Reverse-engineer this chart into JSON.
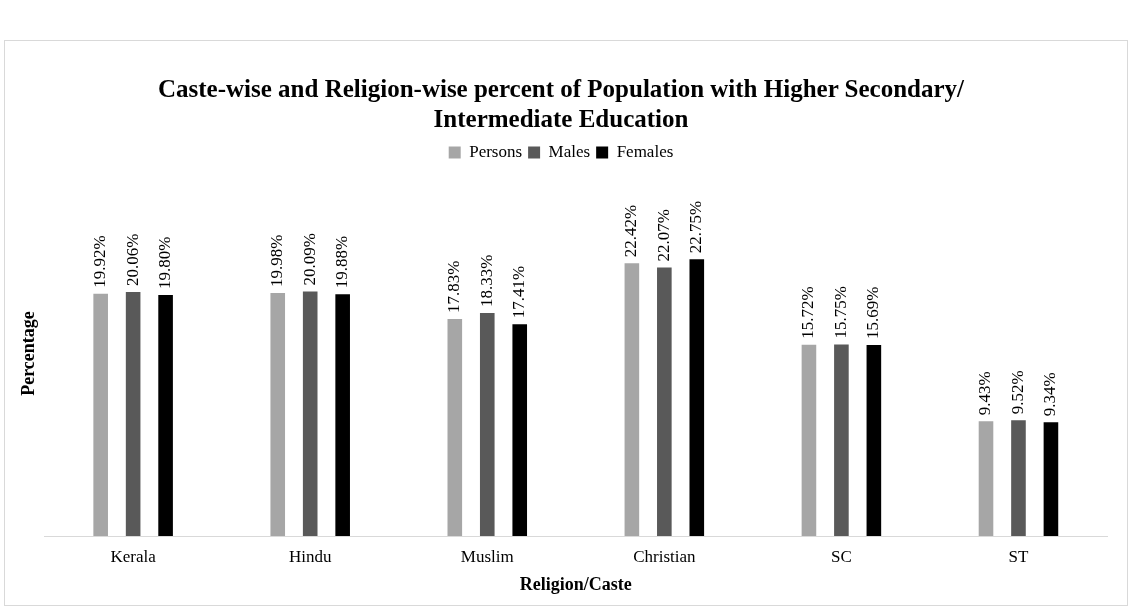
{
  "chart_data": {
    "type": "bar",
    "title": "Caste-wise and Religion-wise percent of Population with Higher Secondary/ Intermediate Education",
    "xlabel": "Religion/Caste",
    "ylabel": "Percentage",
    "categories": [
      "Kerala",
      "Hindu",
      "Muslim",
      "Christian",
      "SC",
      "ST"
    ],
    "series": [
      {
        "name": "Persons",
        "color": "#a6a6a6",
        "values": [
          19.92,
          19.98,
          17.83,
          22.42,
          15.72,
          9.43
        ],
        "value_labels": [
          "19.92%",
          "19.98%",
          "17.83%",
          "22.42%",
          "15.72%",
          "9.43%"
        ]
      },
      {
        "name": "Males",
        "color": "#595959",
        "values": [
          20.06,
          20.09,
          18.33,
          22.07,
          15.75,
          9.52
        ],
        "value_labels": [
          "20.06%",
          "20.09%",
          "18.33%",
          "22.07%",
          "15.75%",
          "9.52%"
        ]
      },
      {
        "name": "Females",
        "color": "#000000",
        "values": [
          19.8,
          19.88,
          17.41,
          22.75,
          15.69,
          9.34
        ],
        "value_labels": [
          "19.80%",
          "19.88%",
          "17.41%",
          "22.75%",
          "15.69%",
          "9.34%"
        ]
      }
    ],
    "legend": "top"
  }
}
